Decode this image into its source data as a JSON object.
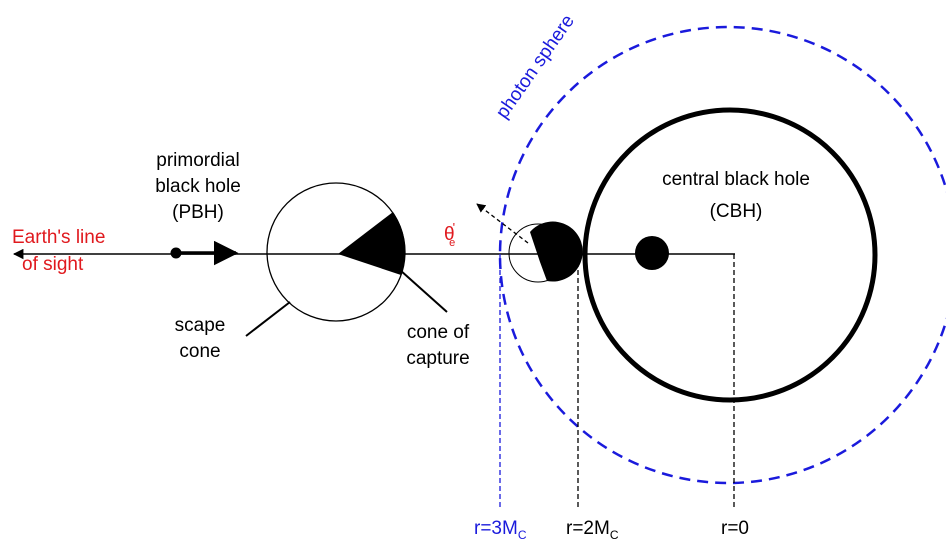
{
  "labels": {
    "photon_sphere": "photon sphere",
    "cbh_name": "central black hole",
    "cbh_abbr": "(CBH)",
    "pbh_line1": "primordial",
    "pbh_line2": "black hole",
    "pbh_abbr": "(PBH)",
    "earth_line1": "Earth's line",
    "earth_line2": "of sight",
    "scape_line1": "scape",
    "scape_line2": "cone",
    "capture_line1": "cone of",
    "capture_line2": "capture",
    "theta": {
      "symbol": "θ",
      "prime": "'",
      "sub": "e"
    },
    "r3": {
      "text": "r=3M",
      "sub": "C"
    },
    "r2": {
      "text": "r=2M",
      "sub": "C"
    },
    "r0": "r=0"
  }
}
